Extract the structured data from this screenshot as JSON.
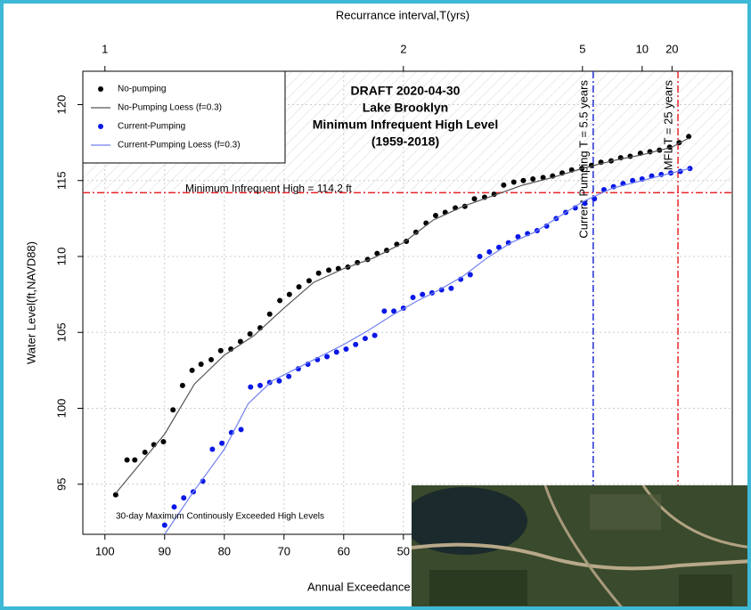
{
  "chart_data": {
    "type": "scatter",
    "title": [
      "DRAFT 2020-04-30",
      "Lake Brooklyn",
      "Minimum Infrequent High Level",
      "(1959-2018)"
    ],
    "x2_label": "Recurrance interval,T(yrs)",
    "x_label": "Annual Exceedance",
    "y_label": "Water Level(ft,NAVD88)",
    "note": "30-day Maximum Continously Exceeded High Levels",
    "xlim": [
      103.7,
      -5.1
    ],
    "ylim": [
      91.7,
      122.2
    ],
    "xticks": [
      100,
      90,
      80,
      70,
      60,
      50
    ],
    "yticks": [
      95,
      100,
      105,
      110,
      115,
      120
    ],
    "x2ticks": [
      1,
      2,
      5,
      10,
      20
    ],
    "grid": true,
    "hlines": [
      {
        "value": 114.2,
        "label": "Minimum Infrequent High = 114.2 ft",
        "color": "#e8252a"
      }
    ],
    "vlines": [
      {
        "value": 18.2,
        "label": "Current Pumping T = 5.5 years",
        "color": "#2230d0"
      },
      {
        "value": 4,
        "label": "MFL T = 25 years",
        "color": "#e8252a"
      }
    ],
    "series": [
      {
        "name": "No-pumping",
        "mode": "points",
        "color": "#000000",
        "x": [
          98.2,
          96.3,
          95.0,
          93.3,
          91.8,
          90.2,
          88.6,
          87.0,
          85.4,
          83.9,
          82.2,
          80.6,
          78.9,
          77.3,
          75.7,
          74.0,
          72.4,
          70.7,
          69.1,
          67.5,
          65.8,
          64.2,
          62.5,
          60.9,
          59.3,
          57.7,
          56.0,
          54.4,
          52.8,
          51.1,
          49.5,
          47.9,
          46.2,
          44.6,
          43.0,
          41.3,
          39.7,
          38.1,
          36.4,
          34.8,
          33.2,
          31.5,
          29.9,
          28.3,
          26.6,
          25.0,
          23.4,
          21.8,
          20.1,
          18.5,
          16.9,
          15.2,
          13.6,
          12.0,
          10.3,
          8.7,
          7.1,
          5.4,
          3.8,
          2.2
        ],
        "values": [
          94.3,
          96.6,
          96.6,
          97.1,
          97.6,
          97.8,
          99.9,
          101.5,
          102.5,
          102.9,
          103.2,
          103.8,
          103.9,
          104.4,
          104.9,
          105.3,
          106.2,
          107.1,
          107.5,
          108.0,
          108.4,
          108.9,
          109.1,
          109.2,
          109.3,
          109.6,
          109.8,
          110.2,
          110.4,
          110.8,
          111.0,
          111.6,
          112.2,
          112.7,
          112.9,
          113.2,
          113.3,
          113.8,
          113.9,
          114.1,
          114.7,
          114.9,
          115.0,
          115.1,
          115.2,
          115.3,
          115.5,
          115.7,
          115.8,
          116.0,
          116.2,
          116.3,
          116.5,
          116.6,
          116.8,
          116.9,
          117.0,
          117.2,
          117.5,
          117.9
        ]
      },
      {
        "name": "No-Pumping Loess (f=0.3)",
        "mode": "line",
        "color": "#555555",
        "x": [
          98.2,
          90,
          85,
          80,
          75,
          70,
          65,
          60,
          55,
          50,
          45,
          40,
          35,
          30,
          25,
          20,
          15,
          10,
          5,
          2.2
        ],
        "values": [
          94.4,
          98.3,
          101.6,
          103.5,
          104.8,
          106.6,
          108.3,
          109.2,
          109.9,
          110.9,
          112.4,
          113.3,
          114.0,
          114.7,
          115.2,
          115.8,
          116.3,
          116.7,
          117.2,
          117.8
        ]
      },
      {
        "name": "Current-Pumping",
        "mode": "points",
        "color": "#0a18e6",
        "x": [
          90.0,
          88.4,
          86.8,
          85.2,
          83.6,
          82.0,
          80.4,
          78.8,
          77.2,
          75.6,
          74.0,
          72.4,
          70.8,
          69.2,
          67.6,
          66.0,
          64.4,
          62.8,
          61.2,
          59.6,
          58.0,
          56.4,
          54.8,
          53.2,
          51.6,
          50.0,
          48.4,
          46.8,
          45.2,
          43.6,
          42.0,
          40.4,
          38.8,
          37.2,
          35.6,
          34.0,
          32.4,
          30.8,
          29.2,
          27.6,
          26.0,
          24.4,
          22.8,
          21.2,
          19.6,
          18.0,
          16.4,
          14.8,
          13.2,
          11.6,
          10.0,
          8.4,
          6.8,
          5.2,
          3.6,
          2.0
        ],
        "values": [
          92.3,
          93.5,
          94.1,
          94.5,
          95.2,
          97.3,
          97.7,
          98.4,
          98.6,
          101.4,
          101.5,
          101.7,
          101.8,
          102.1,
          102.6,
          102.9,
          103.2,
          103.4,
          103.7,
          103.9,
          104.2,
          104.6,
          104.8,
          106.4,
          106.4,
          106.6,
          107.3,
          107.5,
          107.6,
          107.8,
          107.9,
          108.5,
          108.8,
          110.0,
          110.3,
          110.6,
          110.9,
          111.3,
          111.5,
          111.7,
          112.0,
          112.5,
          112.9,
          113.2,
          113.5,
          113.8,
          114.4,
          114.6,
          114.8,
          115.0,
          115.1,
          115.3,
          115.4,
          115.5,
          115.6,
          115.8
        ]
      },
      {
        "name": "Current-Pumping Loess (f=0.3)",
        "mode": "line",
        "color": "#7080f0",
        "x": [
          90,
          85,
          80,
          76,
          72,
          68,
          64,
          60,
          56,
          52,
          48,
          44,
          40,
          36,
          32,
          28,
          24,
          20,
          15,
          10,
          5,
          2
        ],
        "values": [
          91.7,
          94.6,
          97.3,
          100.3,
          101.8,
          102.6,
          103.4,
          104.2,
          105.1,
          106.1,
          107.0,
          107.8,
          108.7,
          109.9,
          110.9,
          111.6,
          112.6,
          113.6,
          114.5,
          115.0,
          115.5,
          115.8
        ]
      }
    ]
  }
}
